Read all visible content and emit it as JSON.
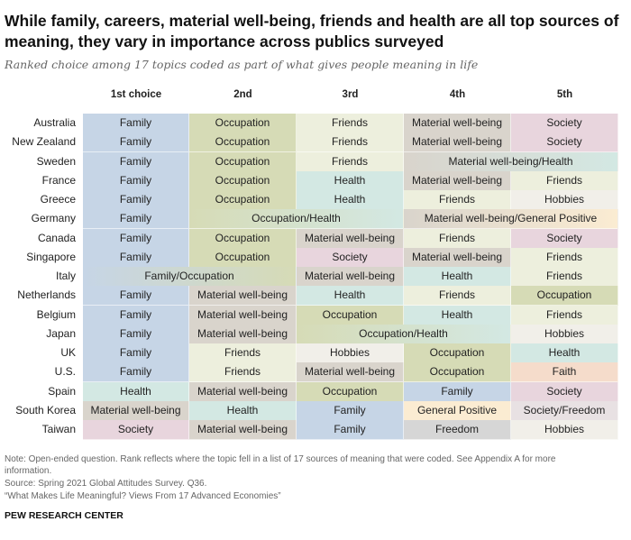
{
  "header": {
    "title": "While family, careers, material well-being, friends and health are all top sources of meaning, they vary in importance across publics surveyed",
    "subtitle": "Ranked choice among 17 topics coded as part of what gives people meaning in life"
  },
  "colors": {
    "Family": "#c6d5e6",
    "Occupation": "#d6dbb6",
    "Friends": "#edefdd",
    "Material well-being": "#d9d4cc",
    "Society": "#e8d5dd",
    "Health": "#d3e8e3",
    "Hobbies": "#f1efe9",
    "Faith": "#f5dccb",
    "General Positive": "#fbecd2",
    "Freedom": "#d6d6d6",
    "Society/Freedom": "#e8e1e3"
  },
  "chart_data": {
    "type": "table",
    "columns": [
      "1st choice",
      "2nd",
      "3rd",
      "4th",
      "5th"
    ],
    "rows": [
      {
        "country": "Australia",
        "cells": [
          {
            "label": "Family",
            "cats": [
              "Family"
            ],
            "span": 1
          },
          {
            "label": "Occupation",
            "cats": [
              "Occupation"
            ],
            "span": 1
          },
          {
            "label": "Friends",
            "cats": [
              "Friends"
            ],
            "span": 1
          },
          {
            "label": "Material well-being",
            "cats": [
              "Material well-being"
            ],
            "span": 1
          },
          {
            "label": "Society",
            "cats": [
              "Society"
            ],
            "span": 1
          }
        ]
      },
      {
        "country": "New Zealand",
        "cells": [
          {
            "label": "Family",
            "cats": [
              "Family"
            ],
            "span": 1
          },
          {
            "label": "Occupation",
            "cats": [
              "Occupation"
            ],
            "span": 1
          },
          {
            "label": "Friends",
            "cats": [
              "Friends"
            ],
            "span": 1
          },
          {
            "label": "Material well-being",
            "cats": [
              "Material well-being"
            ],
            "span": 1
          },
          {
            "label": "Society",
            "cats": [
              "Society"
            ],
            "span": 1
          }
        ]
      },
      {
        "country": "Sweden",
        "cells": [
          {
            "label": "Family",
            "cats": [
              "Family"
            ],
            "span": 1
          },
          {
            "label": "Occupation",
            "cats": [
              "Occupation"
            ],
            "span": 1
          },
          {
            "label": "Friends",
            "cats": [
              "Friends"
            ],
            "span": 1
          },
          {
            "label": "Material well-being/Health",
            "cats": [
              "Material well-being",
              "Health"
            ],
            "span": 2
          }
        ]
      },
      {
        "country": "France",
        "cells": [
          {
            "label": "Family",
            "cats": [
              "Family"
            ],
            "span": 1
          },
          {
            "label": "Occupation",
            "cats": [
              "Occupation"
            ],
            "span": 1
          },
          {
            "label": "Health",
            "cats": [
              "Health"
            ],
            "span": 1
          },
          {
            "label": "Material well-being",
            "cats": [
              "Material well-being"
            ],
            "span": 1
          },
          {
            "label": "Friends",
            "cats": [
              "Friends"
            ],
            "span": 1
          }
        ]
      },
      {
        "country": "Greece",
        "cells": [
          {
            "label": "Family",
            "cats": [
              "Family"
            ],
            "span": 1
          },
          {
            "label": "Occupation",
            "cats": [
              "Occupation"
            ],
            "span": 1
          },
          {
            "label": "Health",
            "cats": [
              "Health"
            ],
            "span": 1
          },
          {
            "label": "Friends",
            "cats": [
              "Friends"
            ],
            "span": 1
          },
          {
            "label": "Hobbies",
            "cats": [
              "Hobbies"
            ],
            "span": 1
          }
        ]
      },
      {
        "country": "Germany",
        "cells": [
          {
            "label": "Family",
            "cats": [
              "Family"
            ],
            "span": 1
          },
          {
            "label": "Occupation/Health",
            "cats": [
              "Occupation",
              "Health"
            ],
            "span": 2
          },
          {
            "label": "Material well-being/General Positive",
            "cats": [
              "Material well-being",
              "General Positive"
            ],
            "span": 2
          }
        ]
      },
      {
        "country": "Canada",
        "cells": [
          {
            "label": "Family",
            "cats": [
              "Family"
            ],
            "span": 1
          },
          {
            "label": "Occupation",
            "cats": [
              "Occupation"
            ],
            "span": 1
          },
          {
            "label": "Material well-being",
            "cats": [
              "Material well-being"
            ],
            "span": 1
          },
          {
            "label": "Friends",
            "cats": [
              "Friends"
            ],
            "span": 1
          },
          {
            "label": "Society",
            "cats": [
              "Society"
            ],
            "span": 1
          }
        ]
      },
      {
        "country": "Singapore",
        "cells": [
          {
            "label": "Family",
            "cats": [
              "Family"
            ],
            "span": 1
          },
          {
            "label": "Occupation",
            "cats": [
              "Occupation"
            ],
            "span": 1
          },
          {
            "label": "Society",
            "cats": [
              "Society"
            ],
            "span": 1
          },
          {
            "label": "Material well-being",
            "cats": [
              "Material well-being"
            ],
            "span": 1
          },
          {
            "label": "Friends",
            "cats": [
              "Friends"
            ],
            "span": 1
          }
        ]
      },
      {
        "country": "Italy",
        "cells": [
          {
            "label": "Family/Occupation",
            "cats": [
              "Family",
              "Occupation"
            ],
            "span": 2
          },
          {
            "label": "Material well-being",
            "cats": [
              "Material well-being"
            ],
            "span": 1
          },
          {
            "label": "Health",
            "cats": [
              "Health"
            ],
            "span": 1
          },
          {
            "label": "Friends",
            "cats": [
              "Friends"
            ],
            "span": 1
          }
        ]
      },
      {
        "country": "Netherlands",
        "cells": [
          {
            "label": "Family",
            "cats": [
              "Family"
            ],
            "span": 1
          },
          {
            "label": "Material well-being",
            "cats": [
              "Material well-being"
            ],
            "span": 1
          },
          {
            "label": "Health",
            "cats": [
              "Health"
            ],
            "span": 1
          },
          {
            "label": "Friends",
            "cats": [
              "Friends"
            ],
            "span": 1
          },
          {
            "label": "Occupation",
            "cats": [
              "Occupation"
            ],
            "span": 1
          }
        ]
      },
      {
        "country": "Belgium",
        "cells": [
          {
            "label": "Family",
            "cats": [
              "Family"
            ],
            "span": 1
          },
          {
            "label": "Material well-being",
            "cats": [
              "Material well-being"
            ],
            "span": 1
          },
          {
            "label": "Occupation",
            "cats": [
              "Occupation"
            ],
            "span": 1
          },
          {
            "label": "Health",
            "cats": [
              "Health"
            ],
            "span": 1
          },
          {
            "label": "Friends",
            "cats": [
              "Friends"
            ],
            "span": 1
          }
        ]
      },
      {
        "country": "Japan",
        "cells": [
          {
            "label": "Family",
            "cats": [
              "Family"
            ],
            "span": 1
          },
          {
            "label": "Material well-being",
            "cats": [
              "Material well-being"
            ],
            "span": 1
          },
          {
            "label": "Occupation/Health",
            "cats": [
              "Occupation",
              "Health"
            ],
            "span": 2
          },
          {
            "label": "Hobbies",
            "cats": [
              "Hobbies"
            ],
            "span": 1
          }
        ]
      },
      {
        "country": "UK",
        "cells": [
          {
            "label": "Family",
            "cats": [
              "Family"
            ],
            "span": 1
          },
          {
            "label": "Friends",
            "cats": [
              "Friends"
            ],
            "span": 1
          },
          {
            "label": "Hobbies",
            "cats": [
              "Hobbies"
            ],
            "span": 1
          },
          {
            "label": "Occupation",
            "cats": [
              "Occupation"
            ],
            "span": 1
          },
          {
            "label": "Health",
            "cats": [
              "Health"
            ],
            "span": 1
          }
        ]
      },
      {
        "country": "U.S.",
        "cells": [
          {
            "label": "Family",
            "cats": [
              "Family"
            ],
            "span": 1
          },
          {
            "label": "Friends",
            "cats": [
              "Friends"
            ],
            "span": 1
          },
          {
            "label": "Material well-being",
            "cats": [
              "Material well-being"
            ],
            "span": 1
          },
          {
            "label": "Occupation",
            "cats": [
              "Occupation"
            ],
            "span": 1
          },
          {
            "label": "Faith",
            "cats": [
              "Faith"
            ],
            "span": 1
          }
        ]
      },
      {
        "country": "Spain",
        "cells": [
          {
            "label": "Health",
            "cats": [
              "Health"
            ],
            "span": 1
          },
          {
            "label": "Material well-being",
            "cats": [
              "Material well-being"
            ],
            "span": 1
          },
          {
            "label": "Occupation",
            "cats": [
              "Occupation"
            ],
            "span": 1
          },
          {
            "label": "Family",
            "cats": [
              "Family"
            ],
            "span": 1
          },
          {
            "label": "Society",
            "cats": [
              "Society"
            ],
            "span": 1
          }
        ]
      },
      {
        "country": "South Korea",
        "cells": [
          {
            "label": "Material well-being",
            "cats": [
              "Material well-being"
            ],
            "span": 1
          },
          {
            "label": "Health",
            "cats": [
              "Health"
            ],
            "span": 1
          },
          {
            "label": "Family",
            "cats": [
              "Family"
            ],
            "span": 1
          },
          {
            "label": "General Positive",
            "cats": [
              "General Positive"
            ],
            "span": 1
          },
          {
            "label": "Society/Freedom",
            "cats": [
              "Society/Freedom"
            ],
            "span": 1
          }
        ]
      },
      {
        "country": "Taiwan",
        "cells": [
          {
            "label": "Society",
            "cats": [
              "Society"
            ],
            "span": 1
          },
          {
            "label": "Material well-being",
            "cats": [
              "Material well-being"
            ],
            "span": 1
          },
          {
            "label": "Family",
            "cats": [
              "Family"
            ],
            "span": 1
          },
          {
            "label": "Freedom",
            "cats": [
              "Freedom"
            ],
            "span": 1
          },
          {
            "label": "Hobbies",
            "cats": [
              "Hobbies"
            ],
            "span": 1
          }
        ]
      }
    ]
  },
  "footer": {
    "note": "Note: Open-ended question. Rank reflects where the topic fell in a list of 17 sources of meaning that were coded. See Appendix A for more information.",
    "source": "Source: Spring 2021 Global Attitudes Survey. Q36.",
    "report": "“What Makes Life Meaningful? Views From 17 Advanced Economies”",
    "brand": "PEW RESEARCH CENTER"
  }
}
